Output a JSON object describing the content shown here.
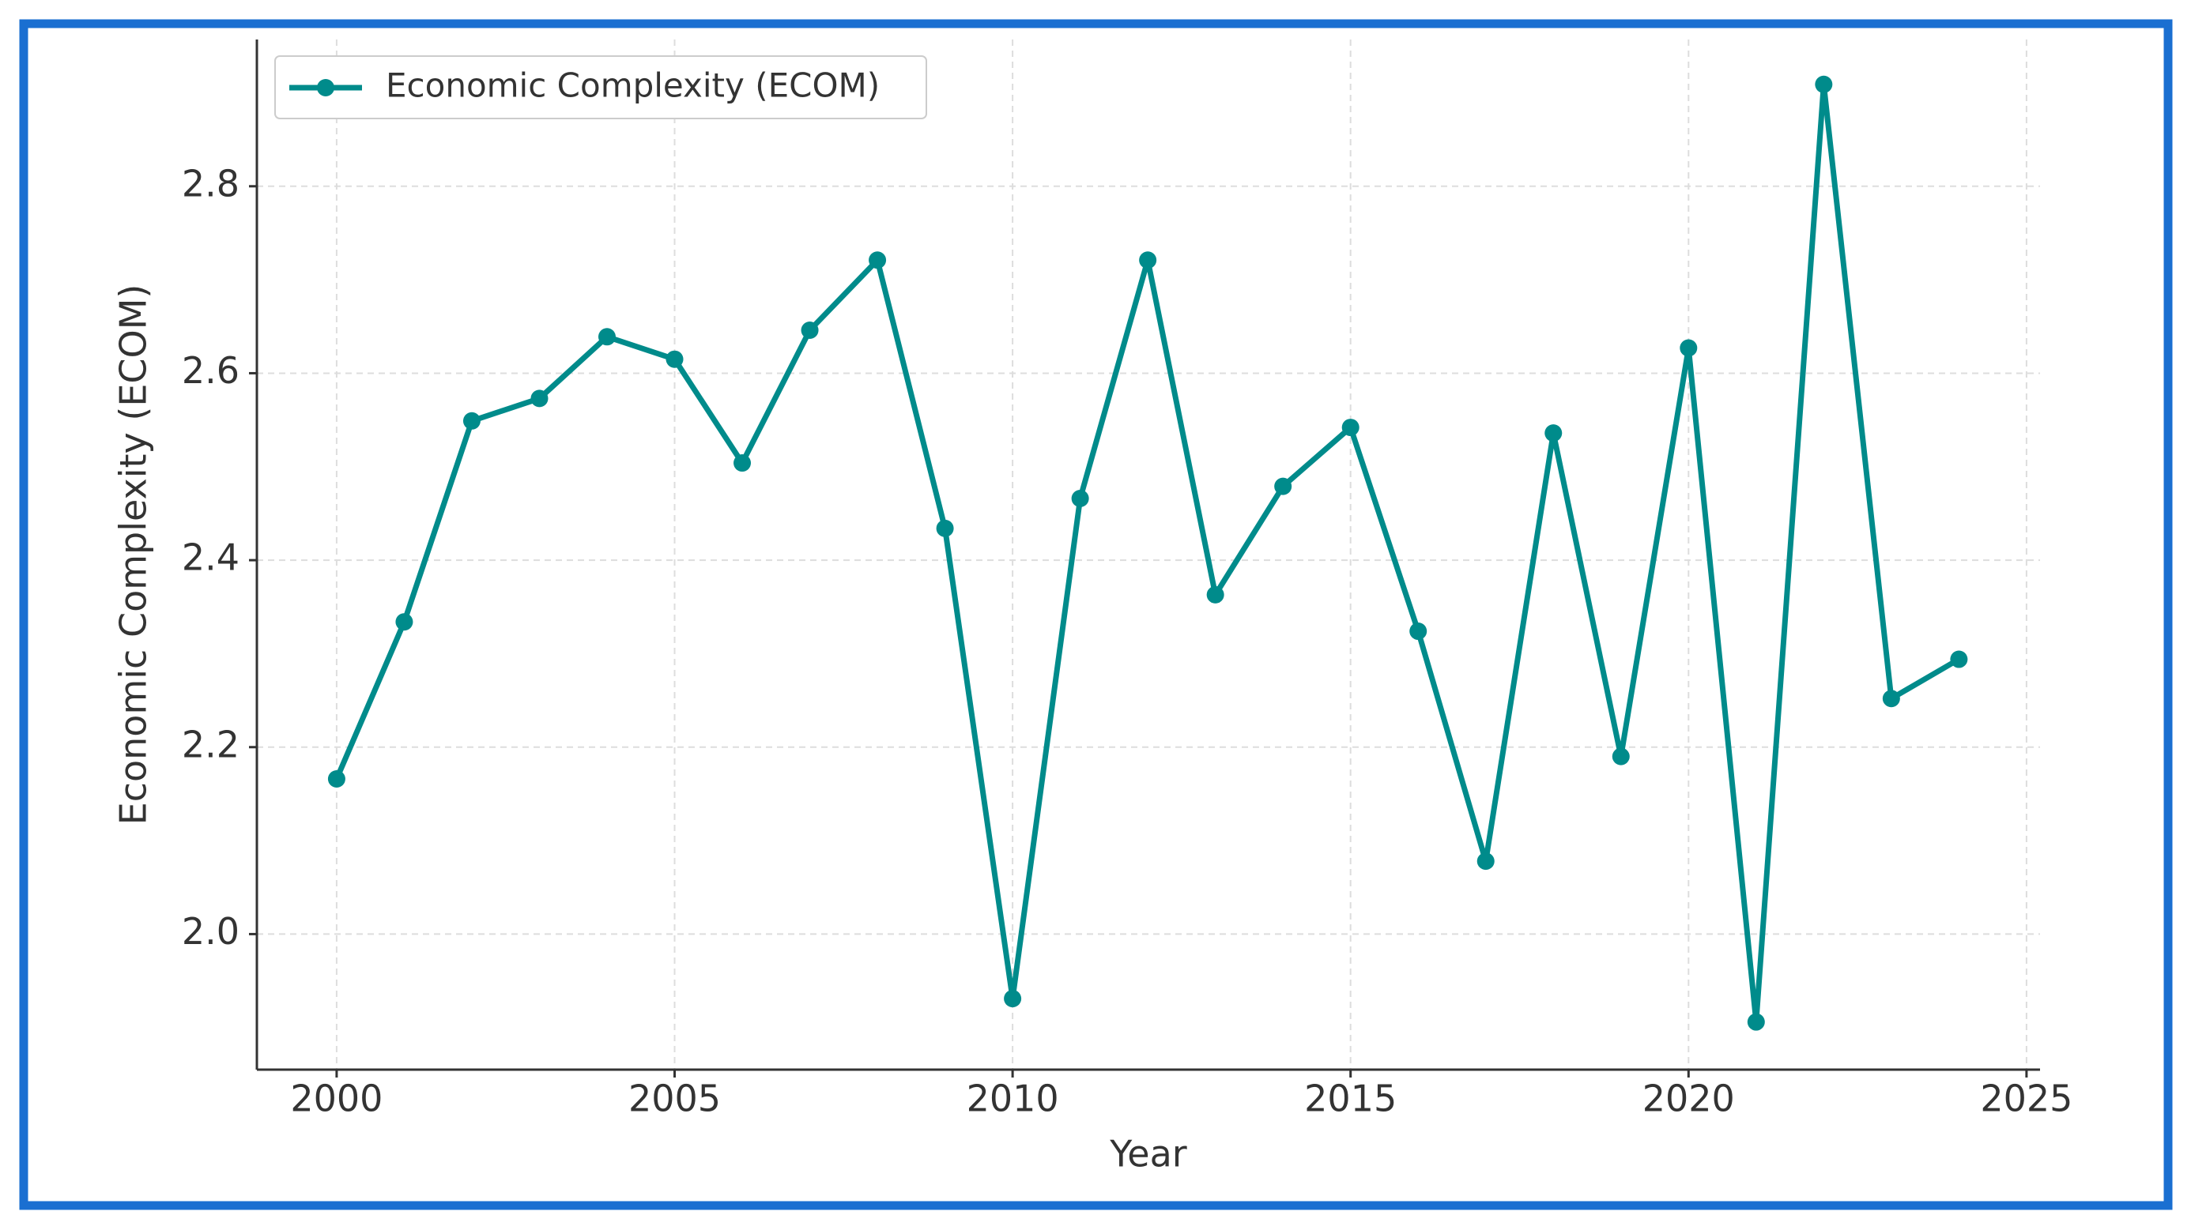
{
  "chart_data": {
    "type": "line",
    "x_label": "Year",
    "y_label": "Economic Complexity (ECOM)",
    "x": [
      2000,
      2001,
      2002,
      2003,
      2004,
      2005,
      2006,
      2007,
      2008,
      2009,
      2010,
      2011,
      2012,
      2013,
      2014,
      2015,
      2016,
      2017,
      2018,
      2019,
      2020,
      2021,
      2022,
      2023,
      2024
    ],
    "series": [
      {
        "name": "Economic Complexity (ECOM)",
        "color": "#008b8b",
        "values": [
          2.166,
          2.334,
          2.549,
          2.573,
          2.639,
          2.615,
          2.504,
          2.646,
          2.721,
          2.434,
          1.931,
          2.466,
          2.721,
          2.363,
          2.479,
          2.542,
          2.324,
          2.078,
          2.536,
          2.19,
          2.627,
          1.906,
          2.909,
          2.252,
          2.294
        ]
      }
    ],
    "xlim": [
      1998.82,
      2025.2
    ],
    "xticks": [
      2000,
      2005,
      2010,
      2015,
      2020,
      2025
    ],
    "ylim": [
      1.855,
      2.957
    ],
    "yticks": [
      {
        "value": 2,
        "label": "2.0"
      },
      2.2,
      2.4,
      2.6,
      2.8
    ],
    "grid": true,
    "legend": "upper left"
  }
}
